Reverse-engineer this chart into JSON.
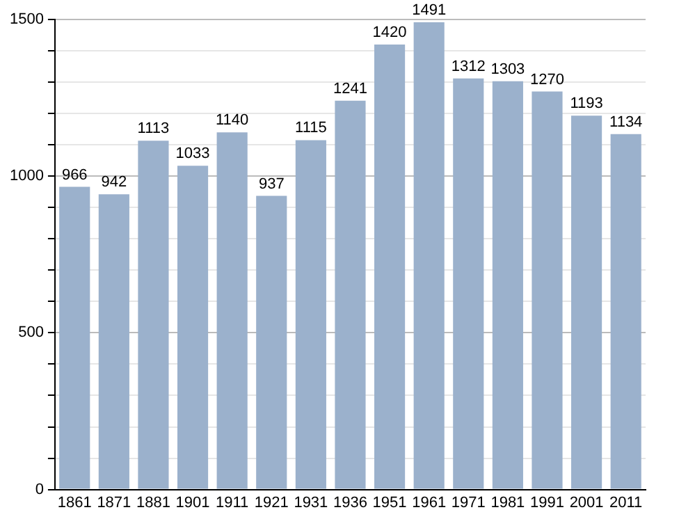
{
  "chart_data": {
    "type": "bar",
    "categories": [
      "1861",
      "1871",
      "1881",
      "1901",
      "1911",
      "1921",
      "1931",
      "1936",
      "1951",
      "1961",
      "1971",
      "1981",
      "1991",
      "2001",
      "2011"
    ],
    "values": [
      966,
      942,
      1113,
      1033,
      1140,
      937,
      1115,
      1241,
      1420,
      1491,
      1312,
      1303,
      1270,
      1193,
      1134
    ],
    "color": "#9bb1cc",
    "data_labels": true,
    "grid": "y",
    "ylim": [
      0,
      1500
    ],
    "yticks": [
      0,
      {
        "value": 100,
        "label": null
      },
      {
        "value": 200,
        "label": null
      },
      {
        "value": 300,
        "label": null
      },
      {
        "value": 400,
        "label": null
      },
      500,
      {
        "value": 600,
        "label": null
      },
      {
        "value": 700,
        "label": null
      },
      {
        "value": 800,
        "label": null
      },
      {
        "value": 900,
        "label": null
      },
      1000,
      {
        "value": 1100,
        "label": null
      },
      {
        "value": 1200,
        "label": null
      },
      {
        "value": 1300,
        "label": null
      },
      {
        "value": 1400,
        "label": null
      },
      1500
    ]
  }
}
